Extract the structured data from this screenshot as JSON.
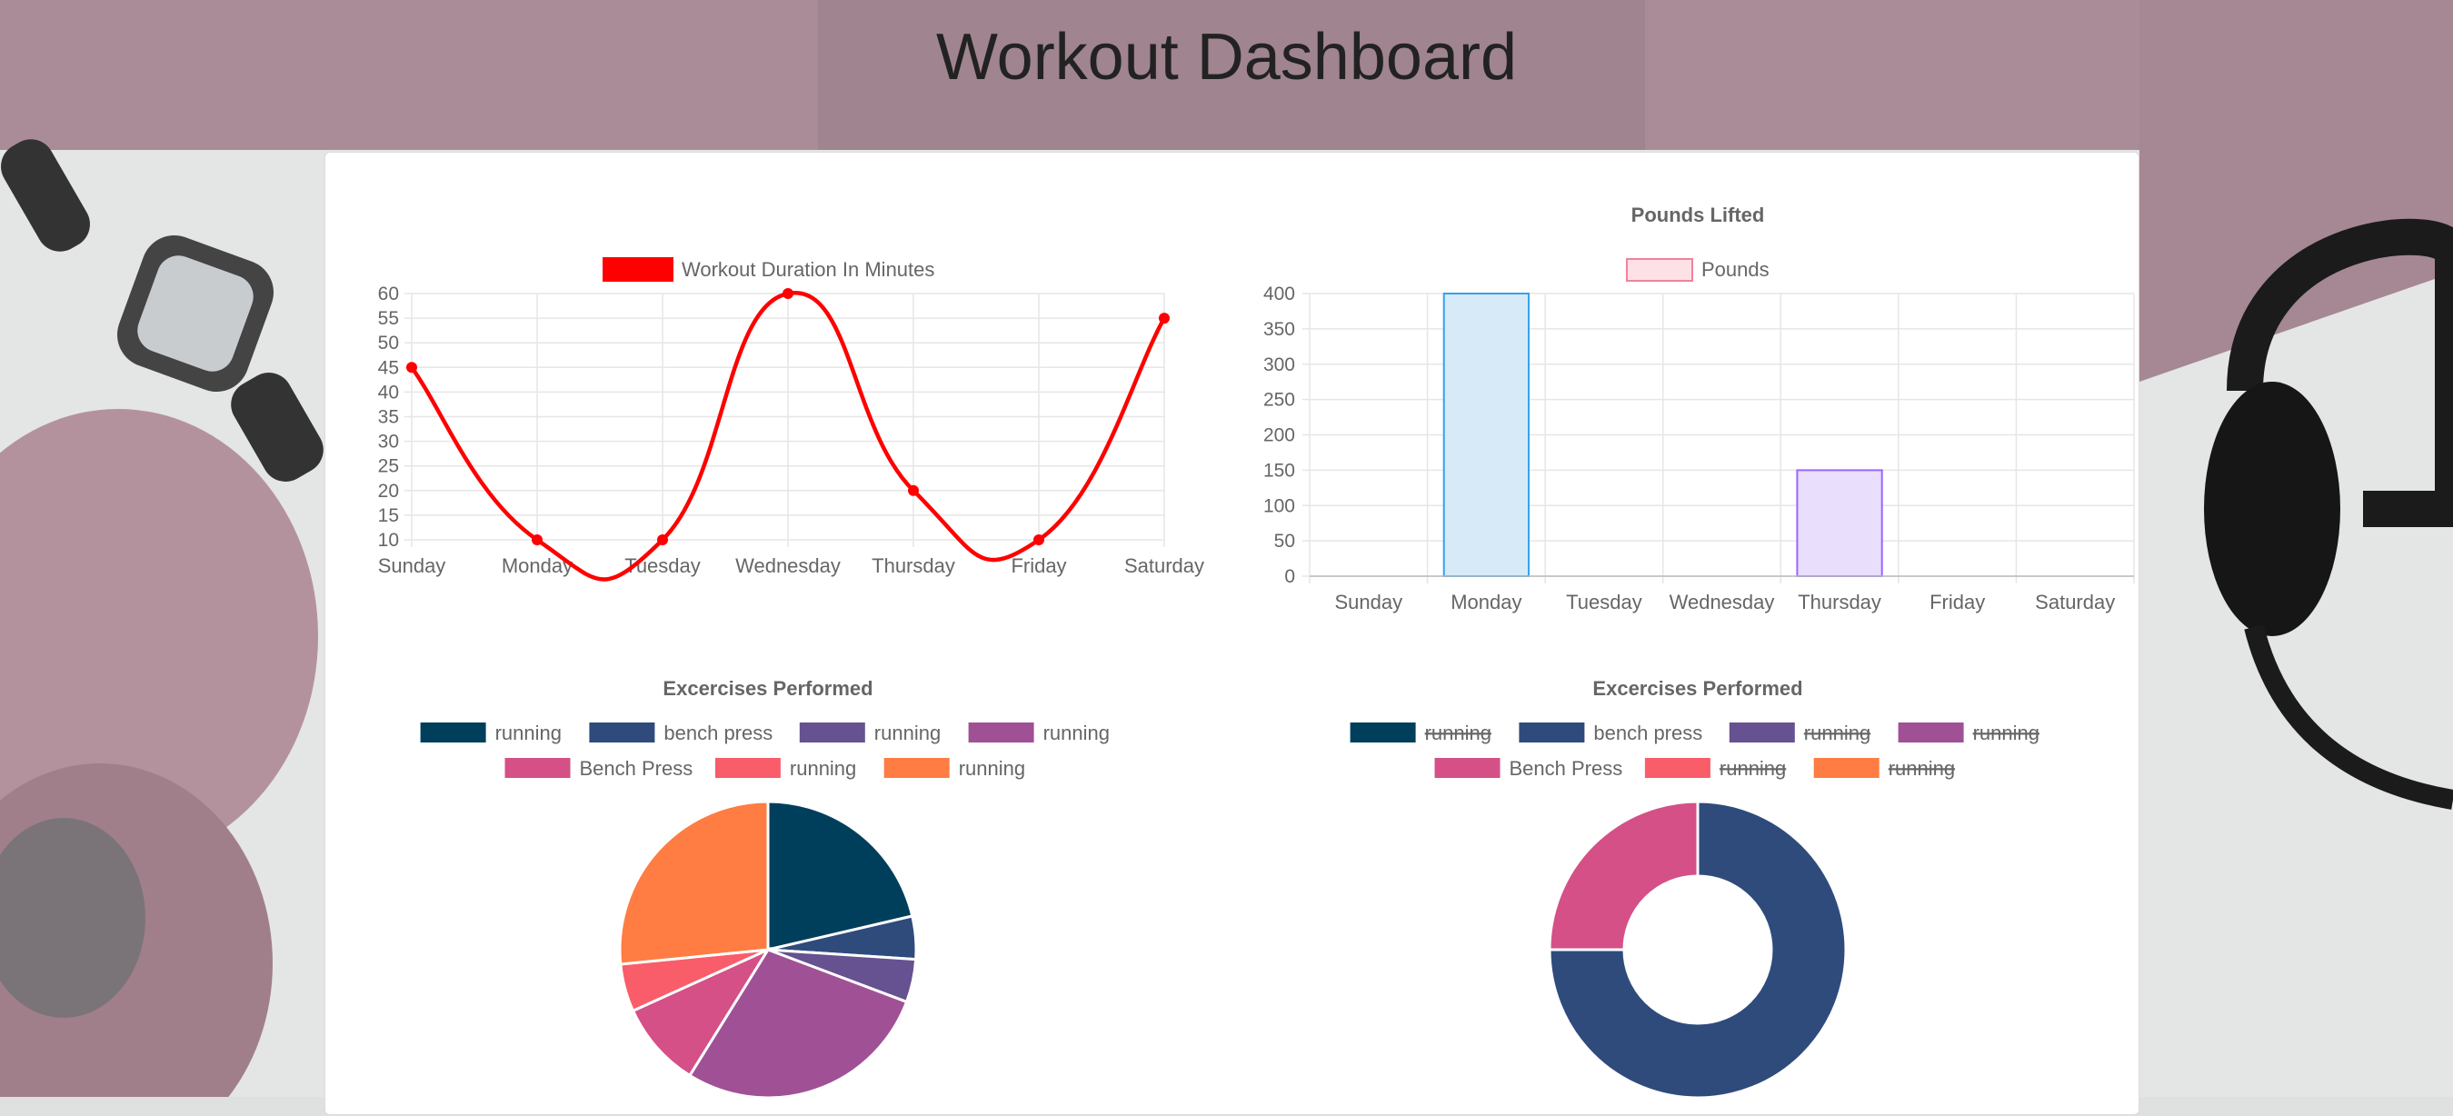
{
  "page": {
    "title": "Workout Dashboard"
  },
  "colors": {
    "line": "#ff0000",
    "grid": "#e6e6e6",
    "text": "#666666",
    "pounds_legend_fill": "#fde1e6",
    "pounds_legend_stroke": "#f08398",
    "palette": [
      "#003f5c",
      "#2f4b7c",
      "#665191",
      "#a05195",
      "#d45087",
      "#f95d6a",
      "#ff7c43"
    ]
  },
  "chart_data": [
    {
      "type": "line",
      "title": "",
      "legend": [
        "Workout Duration In Minutes"
      ],
      "legend_position": "top",
      "categories": [
        "Sunday",
        "Monday",
        "Tuesday",
        "Wednesday",
        "Thursday",
        "Friday",
        "Saturday"
      ],
      "series": [
        {
          "name": "Workout Duration In Minutes",
          "values": [
            45,
            10,
            10,
            60,
            20,
            10,
            55
          ]
        }
      ],
      "ylim": [
        10,
        60
      ],
      "yticks": [
        60,
        55,
        50,
        45,
        40,
        35,
        30,
        25,
        20,
        15,
        10
      ],
      "grid": true,
      "smooth": true
    },
    {
      "type": "bar",
      "title": "Pounds Lifted",
      "legend": [
        "Pounds"
      ],
      "legend_position": "top",
      "categories": [
        "Sunday",
        "Monday",
        "Tuesday",
        "Wednesday",
        "Thursday",
        "Friday",
        "Saturday"
      ],
      "series": [
        {
          "name": "Pounds",
          "values": [
            0,
            400,
            0,
            0,
            150,
            0,
            0
          ]
        }
      ],
      "bar_fills": [
        "#d6eaf8",
        "#d6eaf8",
        "#d6eaf8",
        "#d6eaf8",
        "#e9defc",
        "#d6eaf8",
        "#d6eaf8"
      ],
      "bar_strokes": [
        "#36a2eb",
        "#36a2eb",
        "#36a2eb",
        "#36a2eb",
        "#9966ff",
        "#36a2eb",
        "#36a2eb"
      ],
      "ylim": [
        0,
        400
      ],
      "yticks": [
        400,
        350,
        300,
        250,
        200,
        150,
        100,
        50,
        0
      ],
      "grid": true
    },
    {
      "type": "pie",
      "title": "Excercises Performed",
      "legend_position": "top",
      "labels": [
        "running",
        "bench press",
        "running",
        "running",
        "Bench Press",
        "running",
        "running"
      ],
      "values": [
        20.5,
        4.5,
        4.5,
        27,
        9,
        5,
        25.5
      ],
      "hidden": [
        false,
        false,
        false,
        false,
        false,
        false,
        false
      ]
    },
    {
      "type": "pie",
      "variant": "doughnut",
      "title": "Excercises Performed",
      "legend_position": "top",
      "labels": [
        "running",
        "bench press",
        "running",
        "running",
        "Bench Press",
        "running",
        "running"
      ],
      "values": [
        0,
        75,
        0,
        0,
        25,
        0,
        0
      ],
      "hidden": [
        true,
        false,
        true,
        true,
        false,
        true,
        true
      ]
    }
  ]
}
